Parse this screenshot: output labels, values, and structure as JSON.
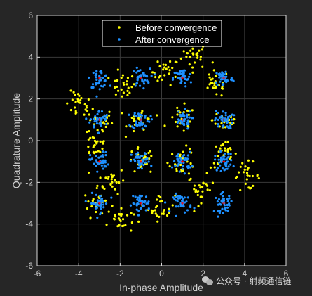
{
  "chart_data": {
    "type": "scatter",
    "title": "",
    "xlabel": "In-phase Amplitude",
    "ylabel": "Quadrature Amplitude",
    "xlim": [
      -6,
      6
    ],
    "ylim": [
      -6,
      6
    ],
    "xticks": [
      "-6",
      "-4",
      "-2",
      "0",
      "2",
      "4",
      "6"
    ],
    "yticks": [
      "6",
      "4",
      "2",
      "0",
      "-2",
      "-4",
      "-6"
    ],
    "grid": true,
    "legend_position": "top-center",
    "series": [
      {
        "name": "Before convergence",
        "color": "#ffff00",
        "description_points": [
          {
            "x": 1.6,
            "y": 4.1
          },
          {
            "x": 0.2,
            "y": 3.3
          },
          {
            "x": -1.9,
            "y": 2.6
          },
          {
            "x": -4.0,
            "y": 1.7
          },
          {
            "x": -3.0,
            "y": 0.9
          },
          {
            "x": -3.2,
            "y": -0.2
          },
          {
            "x": -2.4,
            "y": -1.9
          },
          {
            "x": -3.1,
            "y": -3.0
          },
          {
            "x": -2.0,
            "y": -3.8
          },
          {
            "x": 0.0,
            "y": -3.2
          },
          {
            "x": 1.9,
            "y": -2.3
          },
          {
            "x": 4.1,
            "y": -1.7
          },
          {
            "x": 3.0,
            "y": -0.7
          },
          {
            "x": 3.1,
            "y": 1.0
          },
          {
            "x": 2.6,
            "y": 2.7
          },
          {
            "x": -1.0,
            "y": -1.0
          },
          {
            "x": 1.0,
            "y": 1.0
          },
          {
            "x": -1.0,
            "y": 1.0
          },
          {
            "x": 1.0,
            "y": -1.0
          }
        ]
      },
      {
        "name": "After convergence",
        "color": "#1e90ff",
        "description_points": [
          {
            "x": -3,
            "y": 3
          },
          {
            "x": -1,
            "y": 3
          },
          {
            "x": 1,
            "y": 3
          },
          {
            "x": 3,
            "y": 3
          },
          {
            "x": -3,
            "y": 1
          },
          {
            "x": -1,
            "y": 1
          },
          {
            "x": 1,
            "y": 1
          },
          {
            "x": 3,
            "y": 1
          },
          {
            "x": -3,
            "y": -1
          },
          {
            "x": -1,
            "y": -1
          },
          {
            "x": 1,
            "y": -1
          },
          {
            "x": 3,
            "y": -1
          },
          {
            "x": -3,
            "y": -3
          },
          {
            "x": -1,
            "y": -3
          },
          {
            "x": 1,
            "y": -3
          },
          {
            "x": 3,
            "y": -3
          }
        ]
      }
    ],
    "reference_points": {
      "color": "#ff0000",
      "x": [
        -3,
        -1,
        1,
        3
      ],
      "y": [
        -3,
        -1,
        1,
        3
      ]
    }
  },
  "watermark": {
    "text": "公众号 · 射频通信链"
  }
}
